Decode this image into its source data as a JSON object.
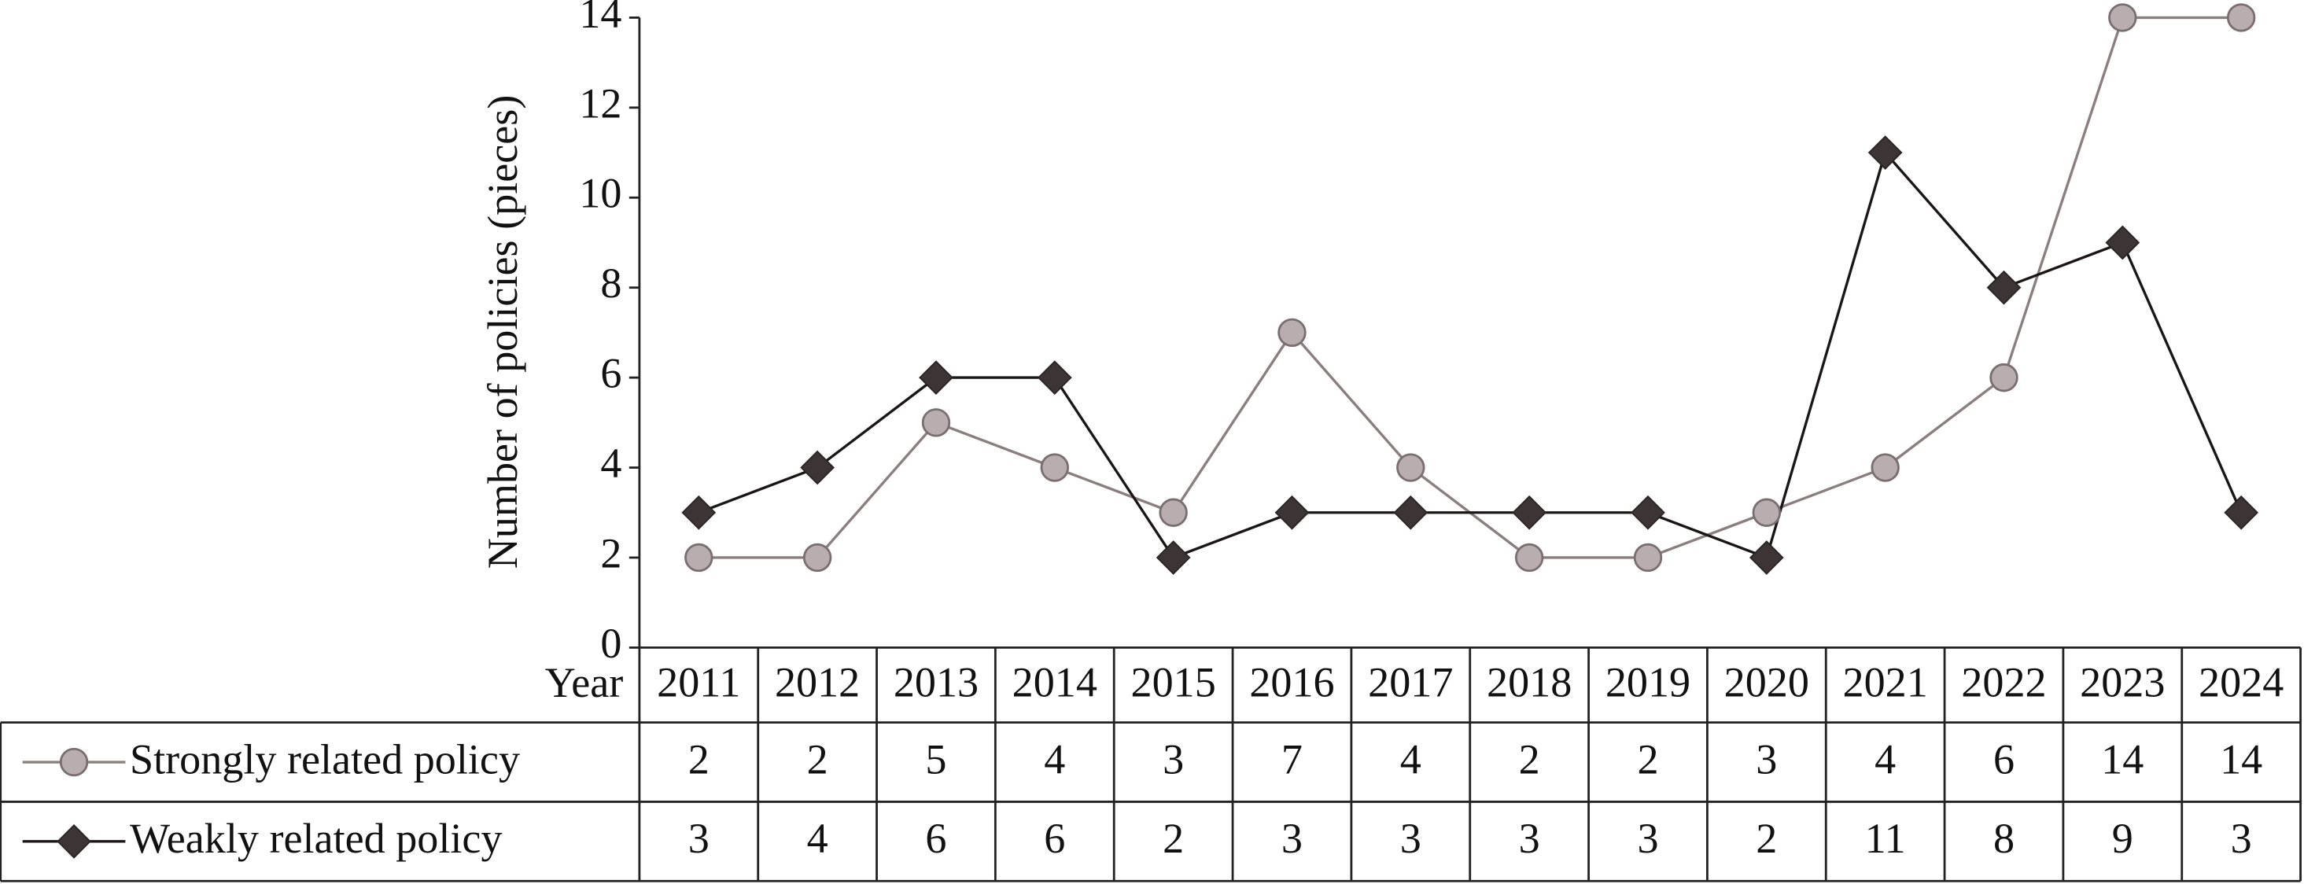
{
  "chart_data": {
    "type": "line",
    "y_label": "Number of policies (pieces)",
    "x_label": "Year",
    "categories": [
      "2011",
      "2012",
      "2013",
      "2014",
      "2015",
      "2016",
      "2017",
      "2018",
      "2019",
      "2020",
      "2021",
      "2022",
      "2023",
      "2024"
    ],
    "series": [
      {
        "name": "Strongly related policy",
        "color": "#8a7e7f",
        "marker": "circle",
        "values": [
          2,
          2,
          5,
          4,
          3,
          7,
          4,
          2,
          2,
          3,
          4,
          6,
          14,
          14
        ]
      },
      {
        "name": "Weakly related policy",
        "color": "#1a1616",
        "marker": "diamond",
        "values": [
          3,
          4,
          6,
          6,
          2,
          3,
          3,
          3,
          3,
          2,
          11,
          8,
          9,
          3
        ]
      }
    ],
    "ylim": [
      0,
      14
    ],
    "yticks": [
      0,
      2,
      4,
      6,
      8,
      10,
      12,
      14
    ]
  }
}
